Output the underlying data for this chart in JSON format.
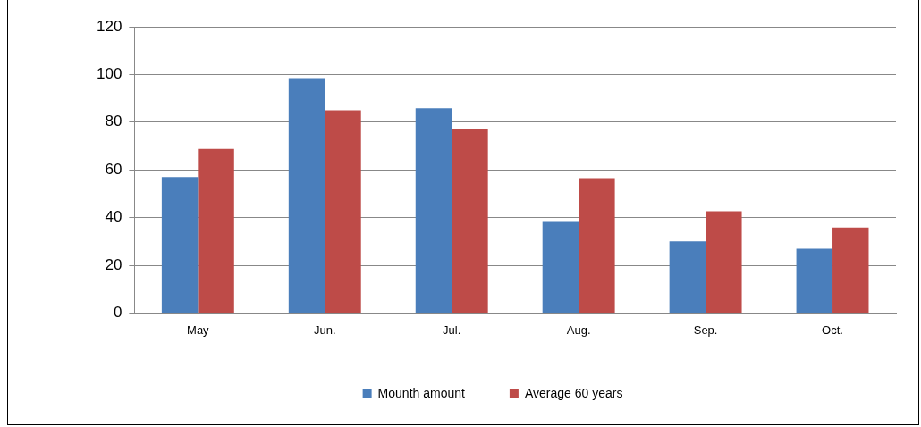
{
  "chart_data": {
    "type": "bar",
    "categories": [
      "May",
      "Jun.",
      "Jul.",
      "Aug.",
      "Sep.",
      "Oct."
    ],
    "series": [
      {
        "name": "Mounth amount",
        "color": "#4a7ebb",
        "values": [
          57,
          98.5,
          85.8,
          38.5,
          30,
          26.9
        ]
      },
      {
        "name": "Average 60 years",
        "color": "#be4b48",
        "values": [
          68.8,
          85,
          77.3,
          56.5,
          42.7,
          35.8
        ]
      }
    ],
    "ylim": [
      0,
      120
    ],
    "yticks": [
      0,
      20,
      40,
      60,
      80,
      100,
      120
    ],
    "grid": "y",
    "legend": "bottom"
  }
}
